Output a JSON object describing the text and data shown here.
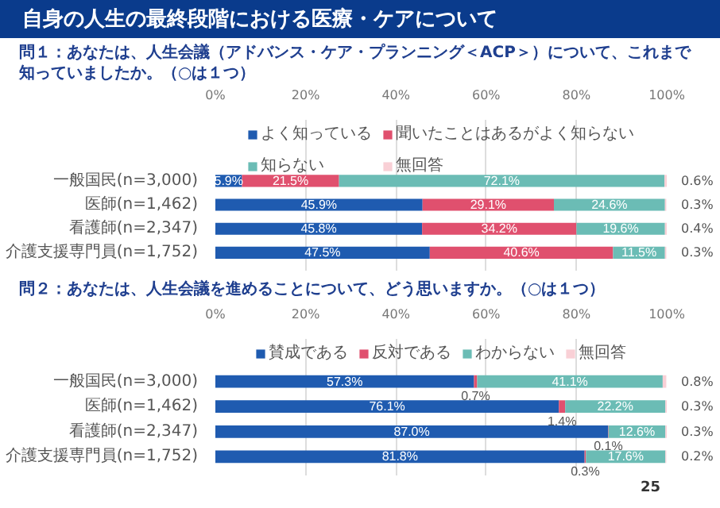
{
  "chart_data": [
    {
      "type": "bar",
      "orientation": "horizontal",
      "stacked": true,
      "title": "自身の人生の最終段階における医療・ケアについて",
      "subtitle": "問１：あなたは、人生会議（アドバンス・ケア・プランニング＜ACP＞）について、これまで知っていましたか。（○は１つ）",
      "categories": [
        "一般国民(n=3,000)",
        "医師(n=1,462)",
        "看護師(n=2,347)",
        "介護支援専門員(n=1,752)"
      ],
      "xlim": [
        0,
        100
      ],
      "xticks": [
        {
          "value": 0,
          "label": "0%"
        },
        {
          "value": 20,
          "label": "20%"
        },
        {
          "value": 40,
          "label": "40%"
        },
        {
          "value": 60,
          "label": "60%"
        },
        {
          "value": 80,
          "label": "80%"
        },
        {
          "value": 100,
          "label": "100%"
        }
      ],
      "grid": "x",
      "legend": "top",
      "series": [
        {
          "name": "よく知っている",
          "color": "#1f5bb0",
          "values": [
            5.9,
            45.9,
            45.8,
            47.5
          ],
          "value_labels": [
            "5.9%",
            "45.9%",
            "45.8%",
            "47.5%"
          ]
        },
        {
          "name": "聞いたことはあるがよく知らない",
          "color": "#e0506e",
          "values": [
            21.5,
            29.1,
            34.2,
            40.6
          ],
          "value_labels": [
            "21.5%",
            "29.1%",
            "34.2%",
            "40.6%"
          ]
        },
        {
          "name": "知らない",
          "color": "#6bbcb5",
          "values": [
            72.1,
            24.6,
            19.6,
            11.5
          ],
          "value_labels": [
            "72.1%",
            "24.6%",
            "19.6%",
            "11.5%"
          ]
        },
        {
          "name": "無回答",
          "color": "#f9d0d6",
          "values": [
            0.6,
            0.3,
            0.4,
            0.3
          ],
          "value_labels": [
            "0.6%",
            "0.3%",
            "0.4%",
            "0.3%"
          ]
        }
      ]
    },
    {
      "type": "bar",
      "orientation": "horizontal",
      "stacked": true,
      "title": "問２：あなたは、人生会議を進めることについて、どう思いますか。（○は１つ）",
      "categories": [
        "一般国民(n=3,000)",
        "医師(n=1,462)",
        "看護師(n=2,347)",
        "介護支援専門員(n=1,752)"
      ],
      "xlim": [
        0,
        100
      ],
      "xticks": [
        {
          "value": 0,
          "label": "0%"
        },
        {
          "value": 20,
          "label": "20%"
        },
        {
          "value": 40,
          "label": "40%"
        },
        {
          "value": 60,
          "label": "60%"
        },
        {
          "value": 80,
          "label": "80%"
        },
        {
          "value": 100,
          "label": "100%"
        }
      ],
      "grid": "x",
      "legend": "top",
      "annotations": [
        "25"
      ],
      "series": [
        {
          "name": "賛成である",
          "color": "#1f5bb0",
          "values": [
            57.3,
            76.1,
            87.0,
            81.8
          ],
          "value_labels": [
            "57.3%",
            "76.1%",
            "87.0%",
            "81.8%"
          ]
        },
        {
          "name": "反対である",
          "color": "#e0506e",
          "values": [
            0.7,
            1.4,
            0.1,
            0.3
          ],
          "value_labels": [
            "0.7%",
            "1.4%",
            "0.1%",
            "0.3%"
          ]
        },
        {
          "name": "わからない",
          "color": "#6bbcb5",
          "values": [
            41.1,
            22.2,
            12.6,
            17.6
          ],
          "value_labels": [
            "41.1%",
            "22.2%",
            "12.6%",
            "17.6%"
          ]
        },
        {
          "name": "無回答",
          "color": "#f9d0d6",
          "values": [
            0.8,
            0.3,
            0.3,
            0.2
          ],
          "value_labels": [
            "0.8%",
            "0.3%",
            "0.3%",
            "0.2%"
          ]
        }
      ]
    }
  ]
}
